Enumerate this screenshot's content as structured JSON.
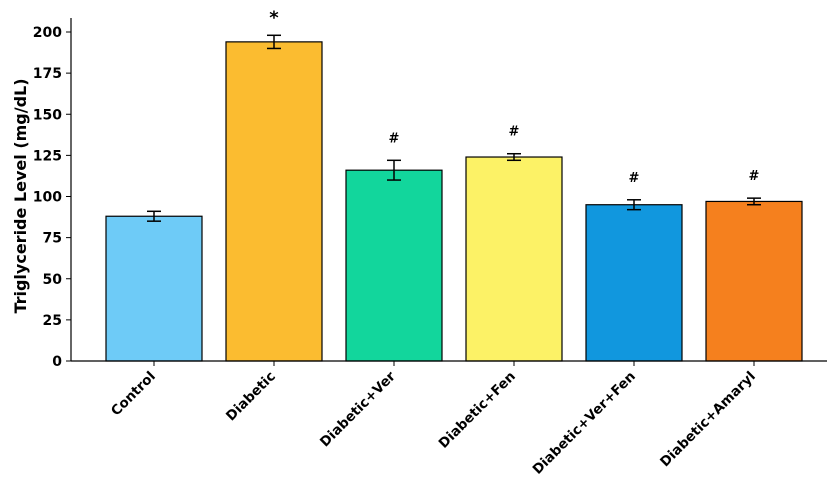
{
  "chart_data": {
    "type": "bar",
    "title": "",
    "xlabel": "",
    "ylabel": "Triglyceride Level (mg/dL)",
    "ylim": [
      0,
      208
    ],
    "yticks": [
      0,
      25,
      50,
      75,
      100,
      125,
      150,
      175,
      200
    ],
    "grid": false,
    "legend": null,
    "categories": [
      "Control",
      "Diabetic",
      "Diabetic+Ver",
      "Diabetic+Fen",
      "Diabetic+Ver+Fen",
      "Diabetic+Amaryl"
    ],
    "values": [
      88,
      194,
      116,
      124,
      95,
      97
    ],
    "errors": [
      3,
      4,
      6,
      2,
      3,
      2
    ],
    "colors": [
      "#6ecbf7",
      "#fbbc30",
      "#12d69c",
      "#fcf266",
      "#1197de",
      "#f5801e"
    ],
    "annotations": [
      "",
      "*",
      "#",
      "#",
      "#",
      "#"
    ]
  }
}
